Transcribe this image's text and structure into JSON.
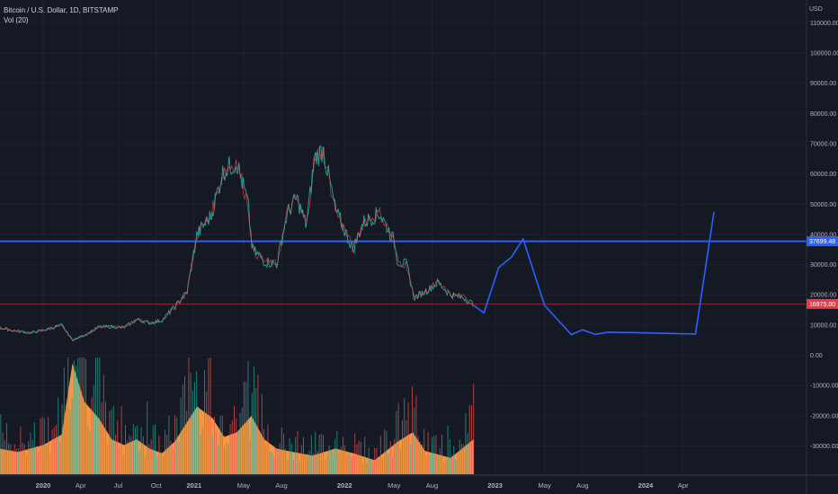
{
  "legend": {
    "symbol_line": "Bitcoin / U.S. Dollar, 1D, BITSTAMP",
    "volume_line": "Vol (20)"
  },
  "chart_data": {
    "type": "line",
    "currency_label": "USD",
    "y_ticks": [
      "110000.00",
      "100000.00",
      "90000.00",
      "80000.00",
      "70000.00",
      "60000.00",
      "50000.00",
      "40000.00",
      "30000.00",
      "20000.00",
      "10000.00",
      "0.00",
      "-10000.00",
      "-20000.00",
      "-30000.00"
    ],
    "y_range": [
      -39000,
      117000
    ],
    "x_ticks": [
      {
        "label": "2020",
        "date": "2020-01-01",
        "bold": true
      },
      {
        "label": "Apr",
        "date": "2020-04-01",
        "bold": false
      },
      {
        "label": "Jul",
        "date": "2020-07-01",
        "bold": false
      },
      {
        "label": "Oct",
        "date": "2020-10-01",
        "bold": false
      },
      {
        "label": "2021",
        "date": "2021-01-01",
        "bold": true
      },
      {
        "label": "May",
        "date": "2021-05-01",
        "bold": false
      },
      {
        "label": "Aug",
        "date": "2021-08-01",
        "bold": false
      },
      {
        "label": "2022",
        "date": "2022-01-01",
        "bold": true
      },
      {
        "label": "May",
        "date": "2022-05-01",
        "bold": false
      },
      {
        "label": "Aug",
        "date": "2022-08-01",
        "bold": false
      },
      {
        "label": "2023",
        "date": "2023-01-01",
        "bold": true
      },
      {
        "label": "May",
        "date": "2023-05-01",
        "bold": false
      },
      {
        "label": "Aug",
        "date": "2023-08-01",
        "bold": false
      },
      {
        "label": "2024",
        "date": "2024-01-01",
        "bold": true
      },
      {
        "label": "Apr",
        "date": "2024-04-01",
        "bold": false
      }
    ],
    "price_series": {
      "name": "",
      "color": "#26a69a",
      "points": [
        [
          "2019-09-01",
          9600
        ],
        [
          "2019-10-15",
          8300
        ],
        [
          "2019-12-01",
          7400
        ],
        [
          "2020-01-15",
          8700
        ],
        [
          "2020-02-15",
          10000
        ],
        [
          "2020-03-12",
          5000
        ],
        [
          "2020-04-15",
          6900
        ],
        [
          "2020-05-15",
          9400
        ],
        [
          "2020-06-15",
          9400
        ],
        [
          "2020-07-15",
          9200
        ],
        [
          "2020-08-15",
          11800
        ],
        [
          "2020-09-15",
          10700
        ],
        [
          "2020-10-15",
          11500
        ],
        [
          "2020-11-15",
          16000
        ],
        [
          "2020-12-15",
          21000
        ],
        [
          "2021-01-08",
          40000
        ],
        [
          "2021-02-10",
          46000
        ],
        [
          "2021-03-13",
          61000
        ],
        [
          "2021-04-14",
          64000
        ],
        [
          "2021-05-12",
          50000
        ],
        [
          "2021-05-22",
          35000
        ],
        [
          "2021-06-22",
          31000
        ],
        [
          "2021-07-20",
          30000
        ],
        [
          "2021-08-15",
          47000
        ],
        [
          "2021-09-07",
          52000
        ],
        [
          "2021-09-30",
          43000
        ],
        [
          "2021-10-20",
          65000
        ],
        [
          "2021-11-10",
          68000
        ],
        [
          "2021-12-10",
          48000
        ],
        [
          "2022-01-22",
          35000
        ],
        [
          "2022-02-15",
          44000
        ],
        [
          "2022-03-28",
          47000
        ],
        [
          "2022-04-30",
          38000
        ],
        [
          "2022-05-10",
          31000
        ],
        [
          "2022-06-01",
          30000
        ],
        [
          "2022-06-18",
          19000
        ],
        [
          "2022-07-15",
          21000
        ],
        [
          "2022-08-15",
          24000
        ],
        [
          "2022-09-15",
          20000
        ],
        [
          "2022-10-15",
          19200
        ],
        [
          "2022-11-10",
          16800
        ]
      ]
    },
    "projection_series": {
      "name": "",
      "color": "#2962ff",
      "points": [
        [
          "2022-11-10",
          16500
        ],
        [
          "2022-12-05",
          14000
        ],
        [
          "2023-01-10",
          29000
        ],
        [
          "2023-02-10",
          32500
        ],
        [
          "2023-03-10",
          38500
        ],
        [
          "2023-05-01",
          16500
        ],
        [
          "2023-07-05",
          6800
        ],
        [
          "2023-08-01",
          8400
        ],
        [
          "2023-09-01",
          6900
        ],
        [
          "2023-10-01",
          7600
        ],
        [
          "2023-12-01",
          7500
        ],
        [
          "2024-05-01",
          7000
        ],
        [
          "2024-06-15",
          47500
        ]
      ]
    },
    "horizontal_lines": [
      {
        "value": 37699.48,
        "label": "37699.48",
        "color": "#2962ff",
        "width": 2
      },
      {
        "value": 16975.0,
        "label": "16975.00",
        "color": "#f23645",
        "width": 0.6
      }
    ],
    "volume": {
      "name": "Vol (20)",
      "area_color": "#ff9e45",
      "spike_colors": [
        "#26a69a",
        "#ef5350"
      ],
      "points": [
        [
          "2019-09-01",
          0.23
        ],
        [
          "2019-11-01",
          0.19
        ],
        [
          "2020-01-01",
          0.25
        ],
        [
          "2020-02-15",
          0.34
        ],
        [
          "2020-03-12",
          0.95
        ],
        [
          "2020-04-10",
          0.62
        ],
        [
          "2020-05-15",
          0.48
        ],
        [
          "2020-06-15",
          0.3
        ],
        [
          "2020-07-15",
          0.25
        ],
        [
          "2020-08-15",
          0.3
        ],
        [
          "2020-09-15",
          0.22
        ],
        [
          "2020-10-15",
          0.18
        ],
        [
          "2020-11-15",
          0.28
        ],
        [
          "2021-01-08",
          0.58
        ],
        [
          "2021-02-15",
          0.48
        ],
        [
          "2021-03-15",
          0.32
        ],
        [
          "2021-04-15",
          0.36
        ],
        [
          "2021-05-20",
          0.5
        ],
        [
          "2021-06-20",
          0.3
        ],
        [
          "2021-07-20",
          0.22
        ],
        [
          "2021-08-15",
          0.2
        ],
        [
          "2021-10-15",
          0.16
        ],
        [
          "2021-12-10",
          0.22
        ],
        [
          "2022-01-22",
          0.18
        ],
        [
          "2022-03-15",
          0.12
        ],
        [
          "2022-05-10",
          0.28
        ],
        [
          "2022-06-15",
          0.36
        ],
        [
          "2022-07-15",
          0.2
        ],
        [
          "2022-09-15",
          0.14
        ],
        [
          "2022-11-10",
          0.3
        ]
      ]
    }
  }
}
